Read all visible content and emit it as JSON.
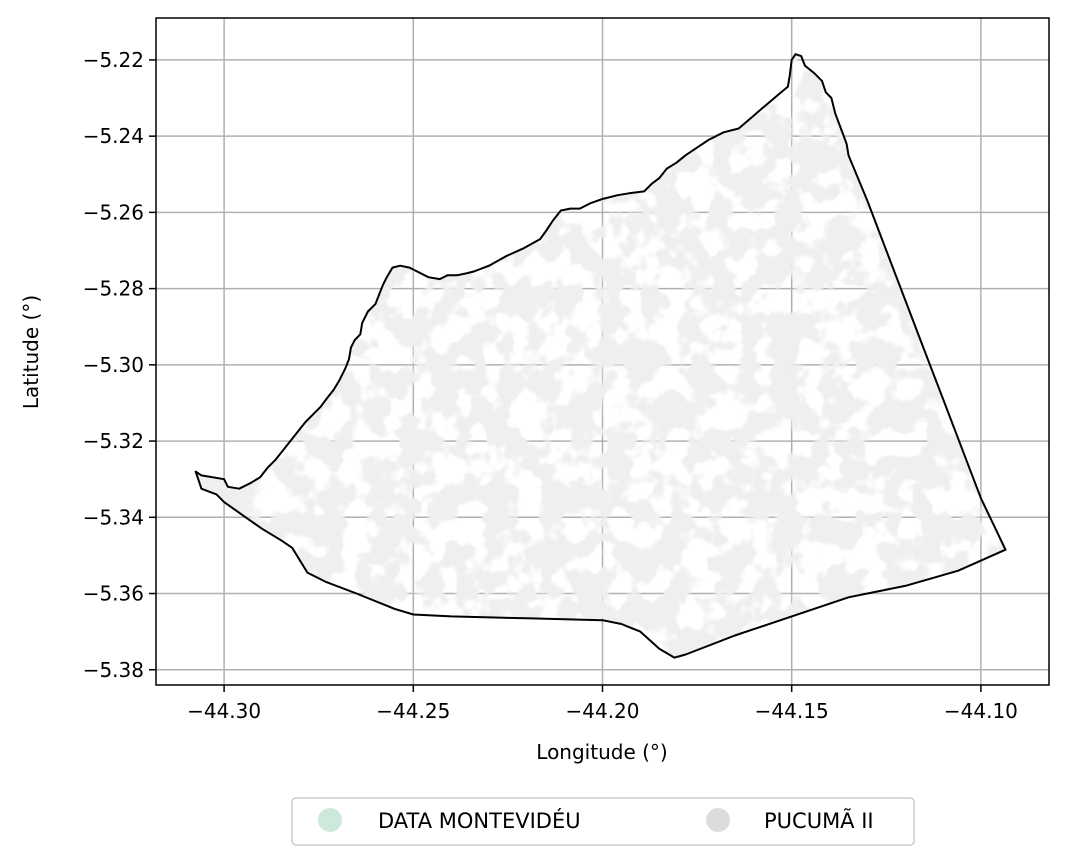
{
  "chart_data": {
    "type": "map",
    "xlabel": "Longitude (°)",
    "ylabel": "Latitude (°)",
    "xlim": [
      -44.318,
      -44.082
    ],
    "ylim": [
      -5.384,
      -5.209
    ],
    "x_ticks": [
      -44.3,
      -44.25,
      -44.2,
      -44.15,
      -44.1
    ],
    "x_tick_labels": [
      "−44.30",
      "−44.25",
      "−44.20",
      "−44.15",
      "−44.10"
    ],
    "y_ticks": [
      -5.22,
      -5.24,
      -5.26,
      -5.28,
      -5.3,
      -5.32,
      -5.34,
      -5.36,
      -5.38
    ],
    "y_tick_labels": [
      "−5.22",
      "−5.24",
      "−5.26",
      "−5.28",
      "−5.30",
      "−5.32",
      "−5.34",
      "−5.36",
      "−5.38"
    ],
    "grid": true,
    "legend": {
      "placement": "bottom-center",
      "entries": [
        {
          "label": "DATA MONTEVIDÉU",
          "color": "#cfe8dc"
        },
        {
          "label": "PUCUMÃ II",
          "color": "#dcdcdc"
        }
      ]
    },
    "boundary_color": "#000000",
    "fill_color": "#dcdcdc",
    "boundary": [
      [
        -44.3075,
        -5.328
      ],
      [
        -44.306,
        -5.329
      ],
      [
        -44.3,
        -5.33
      ],
      [
        -44.299,
        -5.332
      ],
      [
        -44.296,
        -5.3325
      ],
      [
        -44.293,
        -5.331
      ],
      [
        -44.2905,
        -5.3295
      ],
      [
        -44.2885,
        -5.327
      ],
      [
        -44.2865,
        -5.325
      ],
      [
        -44.2845,
        -5.3225
      ],
      [
        -44.2825,
        -5.32
      ],
      [
        -44.2805,
        -5.3175
      ],
      [
        -44.2785,
        -5.315
      ],
      [
        -44.2765,
        -5.313
      ],
      [
        -44.2745,
        -5.311
      ],
      [
        -44.273,
        -5.309
      ],
      [
        -44.271,
        -5.3065
      ],
      [
        -44.2695,
        -5.304
      ],
      [
        -44.268,
        -5.301
      ],
      [
        -44.267,
        -5.2985
      ],
      [
        -44.2665,
        -5.2955
      ],
      [
        -44.2655,
        -5.2935
      ],
      [
        -44.264,
        -5.292
      ],
      [
        -44.2635,
        -5.289
      ],
      [
        -44.262,
        -5.286
      ],
      [
        -44.26,
        -5.284
      ],
      [
        -44.259,
        -5.2815
      ],
      [
        -44.258,
        -5.279
      ],
      [
        -44.257,
        -5.277
      ],
      [
        -44.2555,
        -5.2745
      ],
      [
        -44.2535,
        -5.274
      ],
      [
        -44.251,
        -5.2745
      ],
      [
        -44.248,
        -5.276
      ],
      [
        -44.246,
        -5.277
      ],
      [
        -44.243,
        -5.2775
      ],
      [
        -44.241,
        -5.2765
      ],
      [
        -44.2385,
        -5.2765
      ],
      [
        -44.236,
        -5.276
      ],
      [
        -44.234,
        -5.2755
      ],
      [
        -44.23,
        -5.274
      ],
      [
        -44.2255,
        -5.2715
      ],
      [
        -44.221,
        -5.2695
      ],
      [
        -44.2165,
        -5.267
      ],
      [
        -44.215,
        -5.265
      ],
      [
        -44.213,
        -5.262
      ],
      [
        -44.211,
        -5.2595
      ],
      [
        -44.2085,
        -5.259
      ],
      [
        -44.206,
        -5.259
      ],
      [
        -44.203,
        -5.2575
      ],
      [
        -44.2,
        -5.2565
      ],
      [
        -44.196,
        -5.2555
      ],
      [
        -44.193,
        -5.255
      ],
      [
        -44.189,
        -5.2545
      ],
      [
        -44.187,
        -5.2525
      ],
      [
        -44.185,
        -5.251
      ],
      [
        -44.183,
        -5.2485
      ],
      [
        -44.1805,
        -5.247
      ],
      [
        -44.178,
        -5.245
      ],
      [
        -44.175,
        -5.243
      ],
      [
        -44.172,
        -5.241
      ],
      [
        -44.168,
        -5.239
      ],
      [
        -44.164,
        -5.238
      ],
      [
        -44.1605,
        -5.235
      ],
      [
        -44.157,
        -5.232
      ],
      [
        -44.154,
        -5.2295
      ],
      [
        -44.151,
        -5.227
      ],
      [
        -44.1505,
        -5.224
      ],
      [
        -44.15,
        -5.22
      ],
      [
        -44.149,
        -5.2185
      ],
      [
        -44.1475,
        -5.219
      ],
      [
        -44.1465,
        -5.2215
      ],
      [
        -44.144,
        -5.2235
      ],
      [
        -44.142,
        -5.2255
      ],
      [
        -44.141,
        -5.2285
      ],
      [
        -44.1395,
        -5.23
      ],
      [
        -44.1385,
        -5.234
      ],
      [
        -44.137,
        -5.238
      ],
      [
        -44.1355,
        -5.242
      ],
      [
        -44.135,
        -5.245
      ],
      [
        -44.13,
        -5.257
      ],
      [
        -44.125,
        -5.27
      ],
      [
        -44.12,
        -5.283
      ],
      [
        -44.115,
        -5.296
      ],
      [
        -44.11,
        -5.309
      ],
      [
        -44.105,
        -5.322
      ],
      [
        -44.1,
        -5.335
      ],
      [
        -44.0935,
        -5.3485
      ],
      [
        -44.106,
        -5.354
      ],
      [
        -44.12,
        -5.358
      ],
      [
        -44.135,
        -5.361
      ],
      [
        -44.15,
        -5.366
      ],
      [
        -44.165,
        -5.371
      ],
      [
        -44.178,
        -5.376
      ],
      [
        -44.181,
        -5.3768
      ],
      [
        -44.185,
        -5.3745
      ],
      [
        -44.19,
        -5.37
      ],
      [
        -44.195,
        -5.368
      ],
      [
        -44.2,
        -5.367
      ],
      [
        -44.22,
        -5.3665
      ],
      [
        -44.24,
        -5.366
      ],
      [
        -44.25,
        -5.3655
      ],
      [
        -44.255,
        -5.364
      ],
      [
        -44.265,
        -5.36
      ],
      [
        -44.273,
        -5.357
      ],
      [
        -44.278,
        -5.3545
      ],
      [
        -44.282,
        -5.348
      ],
      [
        -44.285,
        -5.346
      ],
      [
        -44.29,
        -5.343
      ],
      [
        -44.295,
        -5.3395
      ],
      [
        -44.3,
        -5.336
      ],
      [
        -44.302,
        -5.334
      ],
      [
        -44.306,
        -5.3325
      ],
      [
        -44.3075,
        -5.328
      ]
    ]
  }
}
